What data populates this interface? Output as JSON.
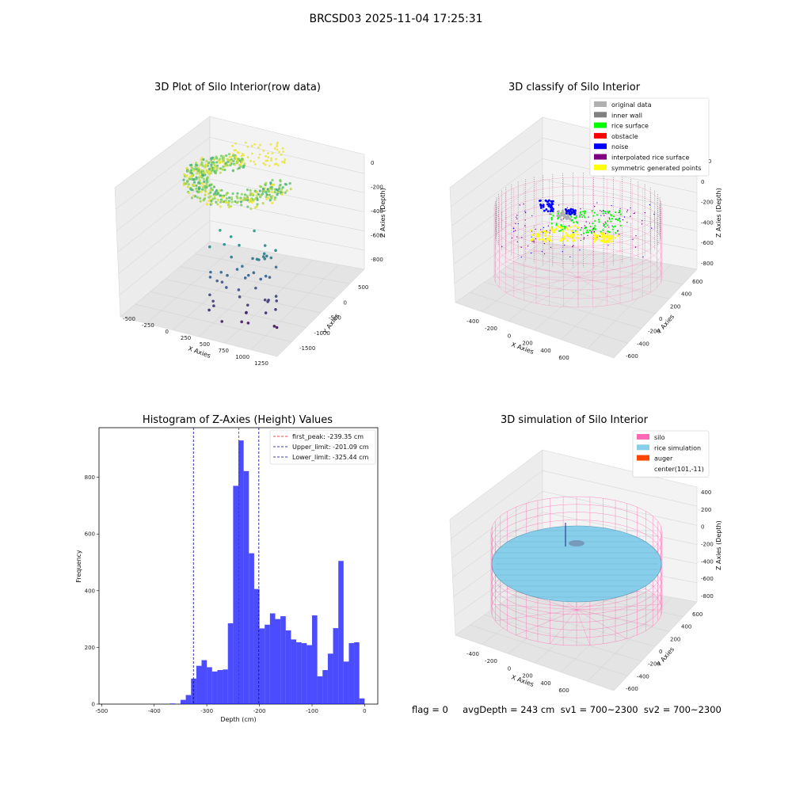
{
  "suptitle": "BRCSD03 2025-11-04 17:25:31",
  "footer": "flag = 0     avgDepth = 243 cm  sv1 = 700~2300  sv2 = 700~2300",
  "plots": {
    "raw": {
      "title": "3D Plot of Silo Interior(row data)",
      "xlabel": "X Axies",
      "ylabel": "Y Axies",
      "zlabel": "Z Axies (Depth)",
      "xticks": [
        "-500",
        "-250",
        "0",
        "250",
        "500",
        "750",
        "1000",
        "1250"
      ],
      "yticks": [
        "500",
        "0",
        "-500",
        "-1000",
        "-1500"
      ],
      "zticks": [
        "0",
        "-200",
        "-400",
        "-600",
        "-800"
      ]
    },
    "classify": {
      "title": "3D classify of Silo Interior",
      "xlabel": "X Axies",
      "ylabel": "Y Axies",
      "zlabel": "Z Axies (Depth)",
      "xticks": [
        "-400",
        "-200",
        "0",
        "200",
        "400",
        "600"
      ],
      "yticks": [
        "600",
        "400",
        "200",
        "0",
        "-200",
        "-400",
        "-600"
      ],
      "zticks": [
        "200",
        "0",
        "-200",
        "-400",
        "-600",
        "-800"
      ],
      "legend": [
        {
          "label": "original data",
          "color": "#b0b0b0"
        },
        {
          "label": "inner wall",
          "color": "#808080"
        },
        {
          "label": "rice surface",
          "color": "#00ff00"
        },
        {
          "label": "obstacle",
          "color": "#ff0000"
        },
        {
          "label": "noise",
          "color": "#0000ff"
        },
        {
          "label": "interpolated rice surface",
          "color": "#800080"
        },
        {
          "label": "symmetric generated points",
          "color": "#ffff00"
        }
      ]
    },
    "simulation": {
      "title": "3D simulation of Silo Interior",
      "xlabel": "X Axies",
      "ylabel": "Y Axies",
      "zlabel": "Z Axies (Depth)",
      "xticks": [
        "-400",
        "-200",
        "0",
        "200",
        "400",
        "600"
      ],
      "yticks": [
        "600",
        "400",
        "200",
        "0",
        "-200",
        "-400",
        "-600"
      ],
      "zticks": [
        "400",
        "200",
        "0",
        "-200",
        "-400",
        "-600",
        "-800"
      ],
      "legend": [
        {
          "label": "silo",
          "color": "#ff69b4"
        },
        {
          "label": "rice simulation",
          "color": "#87ceeb"
        },
        {
          "label": "auger",
          "color": "#ff4500"
        },
        {
          "label": "center(101,-11)",
          "color": ""
        }
      ]
    }
  },
  "chart_data": [
    {
      "type": "bar",
      "title": "Histogram of Z-Axies (Height) Values",
      "xlabel": "Depth (cm)",
      "ylabel": "Frequency",
      "xlim": [
        -505,
        25
      ],
      "ylim": [
        0,
        975
      ],
      "xticks": [
        -500,
        -400,
        -300,
        -200,
        -100,
        0
      ],
      "yticks": [
        0,
        200,
        400,
        600,
        800
      ],
      "bar_color": "#0000ff",
      "bin_width": 10,
      "bins_left": [
        -390,
        -380,
        -370,
        -360,
        -350,
        -340,
        -330,
        -320,
        -310,
        -300,
        -290,
        -280,
        -270,
        -260,
        -250,
        -240,
        -230,
        -220,
        -210,
        -200,
        -190,
        -180,
        -170,
        -160,
        -150,
        -140,
        -130,
        -120,
        -110,
        -100,
        -90,
        -80,
        -70,
        -60,
        -50,
        -40,
        -30,
        -20,
        -10
      ],
      "values": [
        0,
        0,
        2,
        0,
        15,
        32,
        90,
        135,
        155,
        130,
        115,
        120,
        122,
        285,
        770,
        930,
        822,
        532,
        406,
        267,
        280,
        320,
        300,
        310,
        260,
        228,
        218,
        215,
        208,
        313,
        98,
        120,
        178,
        268,
        505,
        150,
        215,
        218,
        20
      ],
      "lines": [
        {
          "label": "first_peak: -239.35 cm",
          "x": -239.35,
          "color": "#ff0000"
        },
        {
          "label": "Upper_limit: -201.09 cm",
          "x": -201.09,
          "color": "#00008b"
        },
        {
          "label": "Lower_limit: -325.44 cm",
          "x": -325.44,
          "color": "#00008b"
        }
      ],
      "legend_position": "upper right"
    }
  ]
}
